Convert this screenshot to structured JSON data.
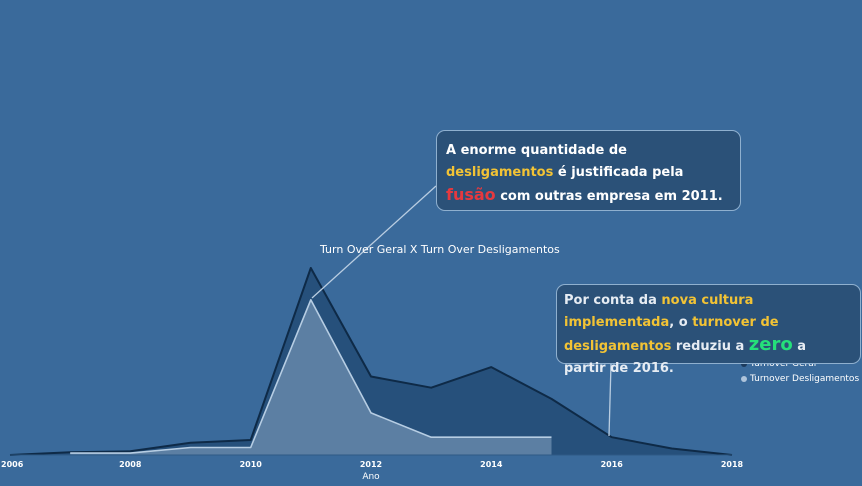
{
  "chart_data": {
    "type": "area",
    "title": "Turn Over Geral X Turn Over Desligamentos",
    "xlabel": "Ano",
    "ylabel": "",
    "x": [
      2006,
      2007,
      2008,
      2009,
      2010,
      2011,
      2012,
      2013,
      2014,
      2015,
      2016,
      2017,
      2018
    ],
    "xticks": [
      "2006",
      "2008",
      "2010",
      "2012",
      "2014",
      "2016",
      "2018"
    ],
    "xlim": [
      2006,
      2018
    ],
    "ylim": [
      0,
      100
    ],
    "series": [
      {
        "name": "Turnover Geral",
        "color": "#26507b",
        "line_color": "#0e2a47",
        "values": [
          0,
          1.5,
          2,
          6.5,
          8,
          100,
          42,
          36,
          47,
          30,
          9.5,
          3.5,
          0
        ]
      },
      {
        "name": "Turnover Desligamentos",
        "color": "#5c7fa3",
        "line_color": "#b6cde3",
        "x": [
          2007,
          2008,
          2009,
          2010,
          2011,
          2012,
          2013,
          2014,
          2015
        ],
        "values": [
          1,
          1,
          4,
          4,
          83,
          22.5,
          9.5,
          9.5,
          9.5
        ]
      }
    ],
    "grid": false,
    "legend_position": "right"
  },
  "legend": {
    "items": [
      {
        "label": "Turnover Geral",
        "color": "#1c3b5e"
      },
      {
        "label": "Turnover Desligamentos",
        "color": "#aec4db"
      }
    ]
  },
  "callouts": {
    "first": {
      "p1": "A enorme quantidade de ",
      "h1": "desligamentos",
      "p2": " é justificada pela ",
      "h2": "fusão",
      "p3": " com outras empresa em 2011.",
      "points_to": "2011"
    },
    "second": {
      "p1": "Por conta da ",
      "h1": "nova cultura implementada",
      "p2": ", o ",
      "h2": "turnover de desligamentos",
      "p3": " reduziu a ",
      "h3": "zero",
      "p4": " a partir de 2016.",
      "points_to": "2016"
    }
  },
  "colors": {
    "background": "#3a6a9b",
    "callout_background": "#2b5178",
    "callout_border": "#8fb0cf",
    "highlight_yellow": "#f2c335",
    "highlight_red": "#e5393f",
    "highlight_green": "#25e07a"
  }
}
